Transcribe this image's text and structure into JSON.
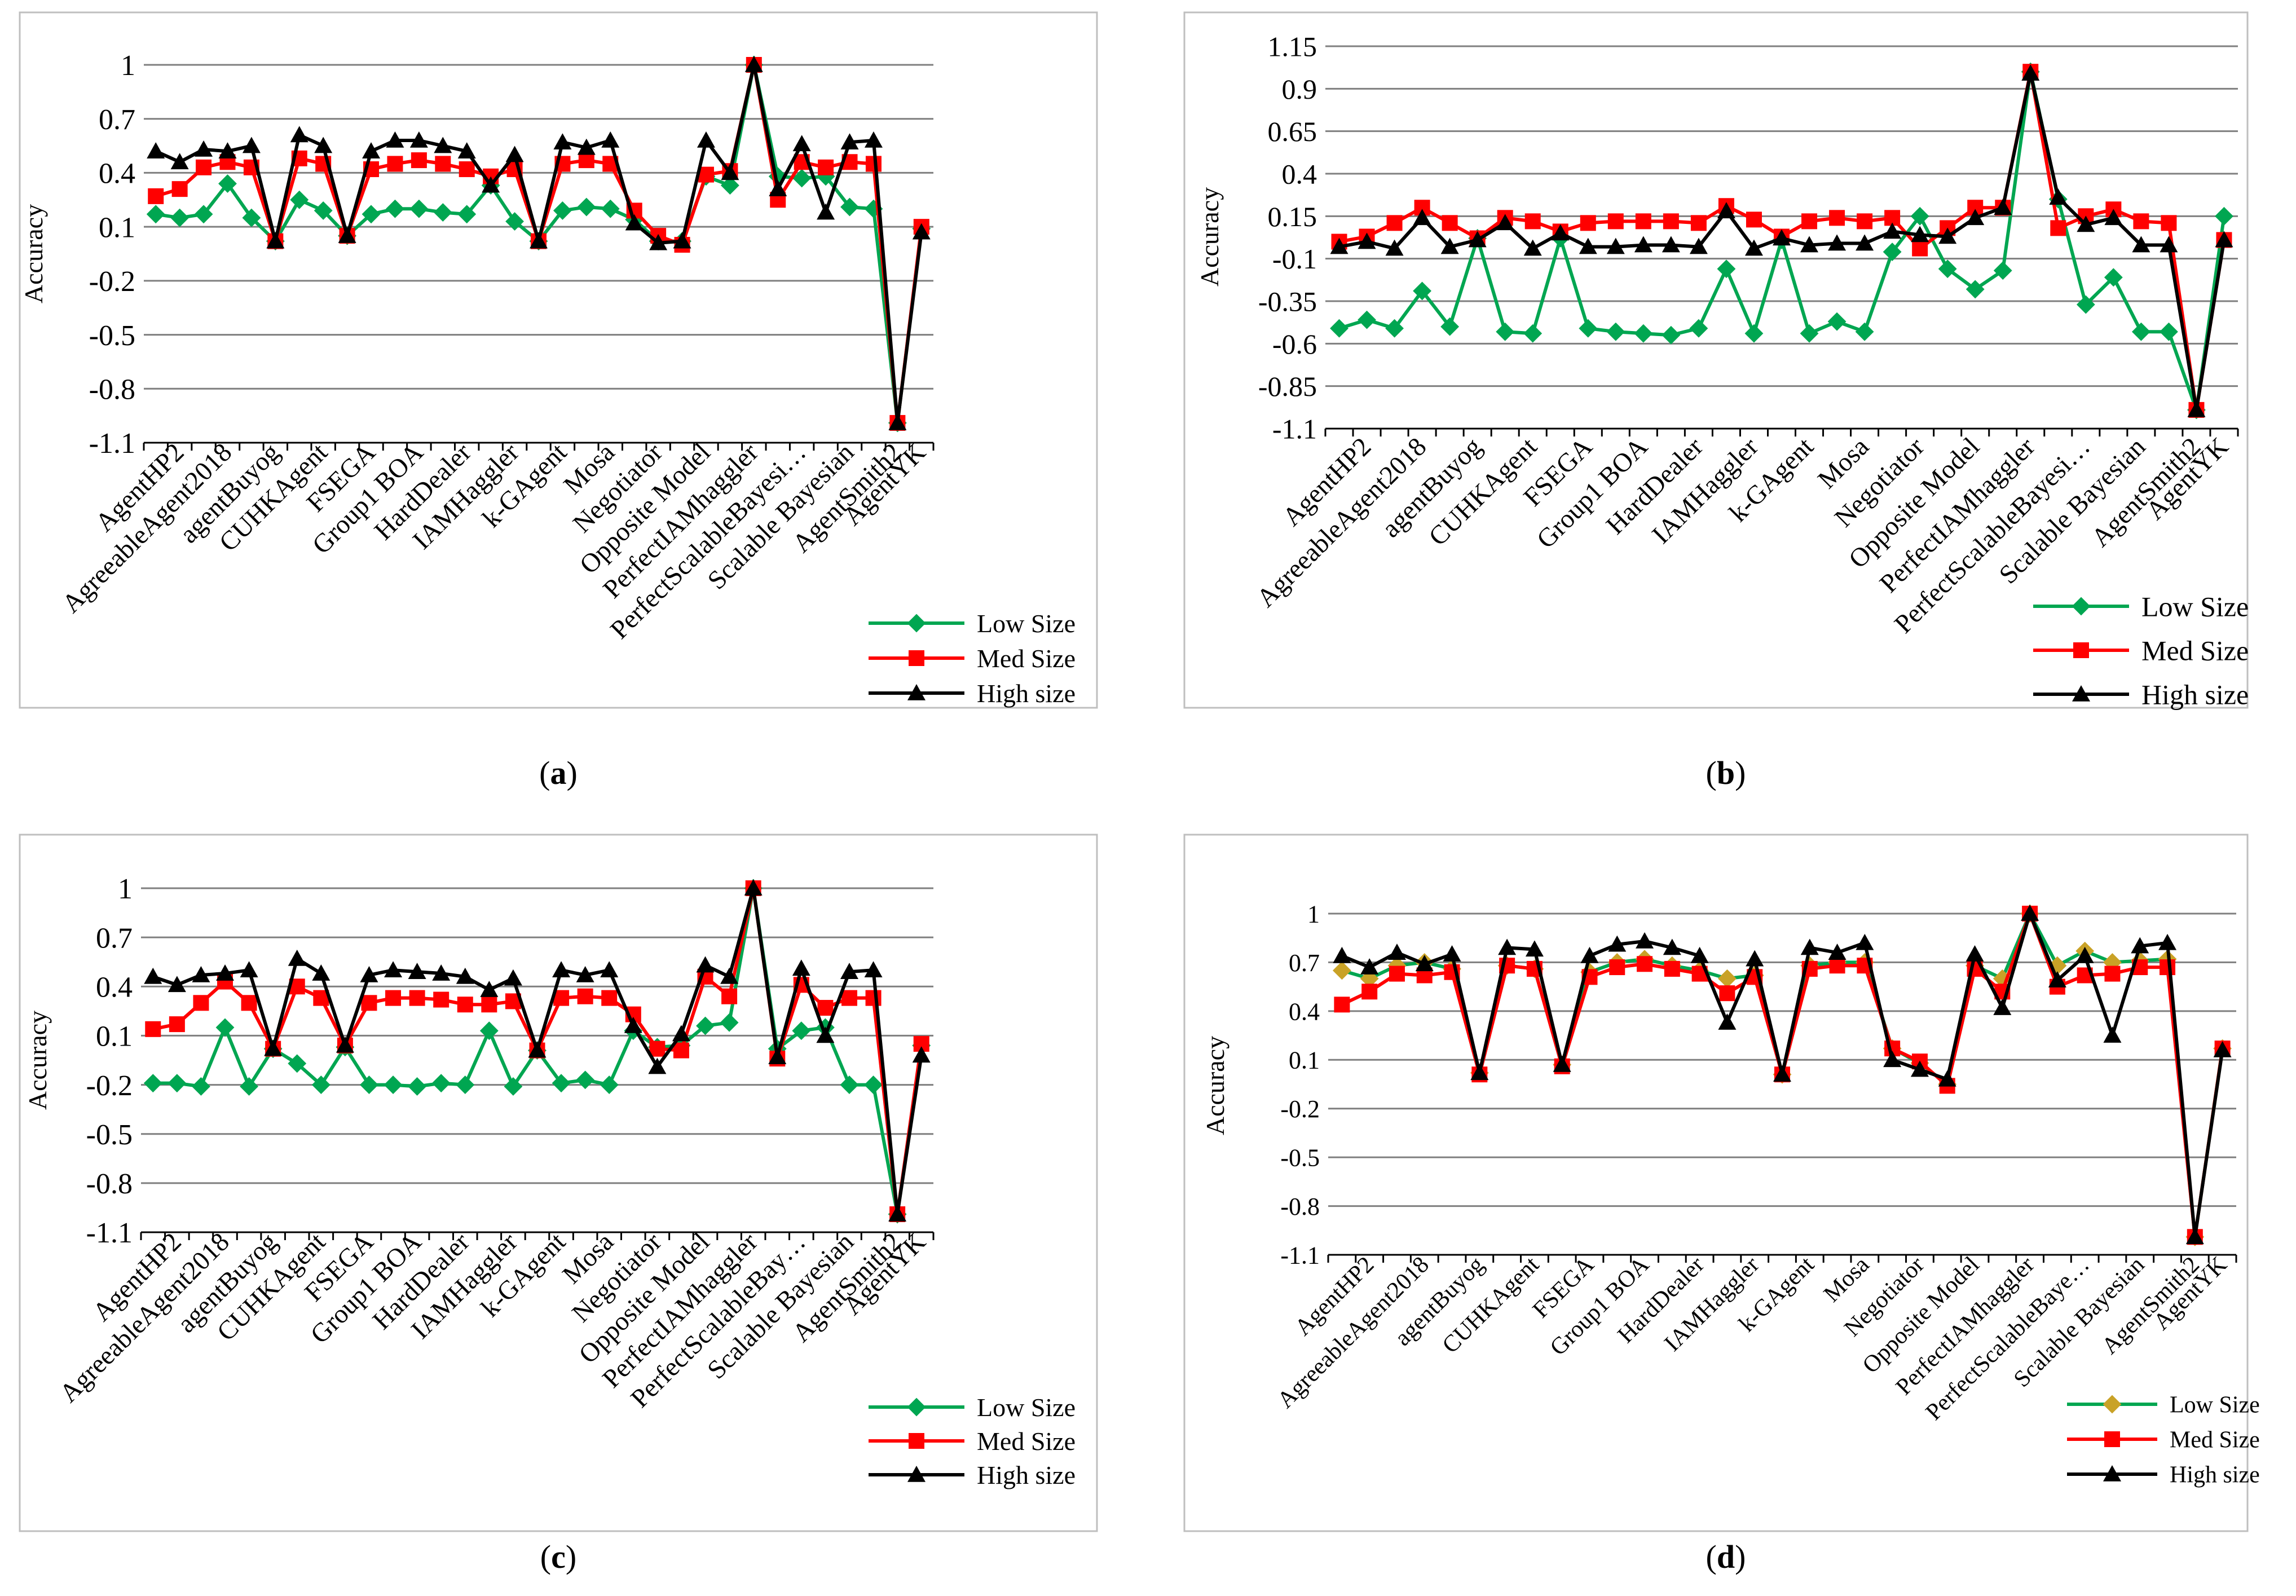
{
  "colors": {
    "low": "#00A651",
    "med": "#FF0000",
    "high": "#000000",
    "grid": "#7F7F7F",
    "border": "#BFBFBF",
    "low_marker_d": "#C9A227"
  },
  "legend": {
    "low": "Low Size",
    "med": "Med Size",
    "high": "High size"
  },
  "chart_data": [
    {
      "panel_label": "(a)",
      "type": "line",
      "ylabel": "Accuracy",
      "ylim": [
        -1.1,
        1.0
      ],
      "yticks": [
        "1",
        "0.7",
        "0.4",
        "0.1",
        "-0.2",
        "-0.5",
        "-0.8",
        "-1.1"
      ],
      "ytick_values": [
        1,
        0.7,
        0.4,
        0.1,
        -0.2,
        -0.5,
        -0.8,
        -1.1
      ],
      "category_labels": [
        "AgentHP2",
        "AgreeableAgent2018",
        "agentBuyog",
        "CUHKAgent",
        "FSEGA",
        "Group1 BOA",
        "HardDealer",
        "IAMHaggler",
        "k-GAgent",
        "Mosa",
        "Negotiator",
        "Opposite Model",
        "PerfectIAMhaggler",
        "PerfectScalableBayesi…",
        "Scalable Bayesian",
        "AgentSmith2",
        "AgentYK"
      ],
      "series": [
        {
          "name": "Low Size",
          "values": [
            0.17,
            0.15,
            0.17,
            0.34,
            0.15,
            0.02,
            0.25,
            0.19,
            0.05,
            0.17,
            0.2,
            0.2,
            0.18,
            0.17,
            0.33,
            0.13,
            0.02,
            0.19,
            0.21,
            0.2,
            0.14,
            0.02,
            0.02,
            0.38,
            0.33,
            1.0,
            0.38,
            0.37,
            0.38,
            0.21,
            0.2,
            -0.99,
            0.09
          ]
        },
        {
          "name": "Med Size",
          "values": [
            0.27,
            0.31,
            0.43,
            0.46,
            0.43,
            0.02,
            0.48,
            0.45,
            0.05,
            0.42,
            0.45,
            0.47,
            0.45,
            0.42,
            0.38,
            0.42,
            0.02,
            0.45,
            0.47,
            0.45,
            0.19,
            0.05,
            0.0,
            0.39,
            0.41,
            1.0,
            0.25,
            0.46,
            0.43,
            0.46,
            0.45,
            -0.99,
            0.1
          ]
        },
        {
          "name": "High size",
          "values": [
            0.52,
            0.46,
            0.53,
            0.52,
            0.55,
            0.02,
            0.61,
            0.55,
            0.05,
            0.52,
            0.58,
            0.58,
            0.55,
            0.52,
            0.33,
            0.5,
            0.02,
            0.57,
            0.54,
            0.58,
            0.12,
            0.01,
            0.02,
            0.58,
            0.4,
            1.0,
            0.31,
            0.56,
            0.18,
            0.57,
            0.58,
            -0.99,
            0.07
          ]
        }
      ]
    },
    {
      "panel_label": "(b)",
      "type": "line",
      "ylabel": "Accuracy",
      "ylim": [
        -1.1,
        1.15
      ],
      "yticks": [
        "1.15",
        "0.9",
        "0.65",
        "0.4",
        "0.15",
        "-0.1",
        "-0.35",
        "-0.6",
        "-0.85",
        "-1.1"
      ],
      "ytick_values": [
        1.15,
        0.9,
        0.65,
        0.4,
        0.15,
        -0.1,
        -0.35,
        -0.6,
        -0.85,
        -1.1
      ],
      "category_labels": [
        "AgentHP2",
        "AgreeableAgent2018",
        "agentBuyog",
        "CUHKAgent",
        "FSEGA",
        "Group1 BOA",
        "HardDealer",
        "IAMHaggler",
        "k-GAgent",
        "Mosa",
        "Negotiator",
        "Opposite Model",
        "PerfectIAMhaggler",
        "PerfectScalableBayesi…",
        "Scalable Bayesian",
        "AgentSmith2",
        "AgentYK"
      ],
      "series": [
        {
          "name": "Low Size",
          "values": [
            -0.51,
            -0.46,
            -0.51,
            -0.29,
            -0.5,
            0.02,
            -0.53,
            -0.54,
            0.02,
            -0.51,
            -0.53,
            -0.54,
            -0.55,
            -0.51,
            -0.16,
            -0.54,
            0.01,
            -0.54,
            -0.47,
            -0.53,
            -0.06,
            0.15,
            -0.16,
            -0.28,
            -0.17,
            1.0,
            0.25,
            -0.37,
            -0.21,
            -0.53,
            -0.53,
            -0.99,
            0.15
          ]
        },
        {
          "name": "Med Size",
          "values": [
            0.0,
            0.03,
            0.11,
            0.2,
            0.11,
            0.02,
            0.14,
            0.12,
            0.06,
            0.11,
            0.12,
            0.12,
            0.12,
            0.11,
            0.21,
            0.13,
            0.03,
            0.12,
            0.14,
            0.12,
            0.14,
            -0.04,
            0.08,
            0.2,
            0.2,
            1.0,
            0.08,
            0.15,
            0.19,
            0.12,
            0.11,
            -0.99,
            0.01
          ]
        },
        {
          "name": "High size",
          "values": [
            -0.03,
            0.0,
            -0.04,
            0.14,
            -0.03,
            0.01,
            0.11,
            -0.04,
            0.05,
            -0.03,
            -0.03,
            -0.02,
            -0.02,
            -0.03,
            0.18,
            -0.04,
            0.02,
            -0.02,
            -0.01,
            -0.01,
            0.06,
            0.04,
            0.03,
            0.14,
            0.2,
            0.99,
            0.26,
            0.1,
            0.14,
            -0.02,
            -0.02,
            -0.99,
            0.01
          ]
        }
      ]
    },
    {
      "panel_label": "(c)",
      "type": "line",
      "ylabel": "Accuracy",
      "ylim": [
        -1.1,
        1.0
      ],
      "yticks": [
        "1",
        "0.7",
        "0.4",
        "0.1",
        "-0.2",
        "-0.5",
        "-0.8",
        "-1.1"
      ],
      "ytick_values": [
        1,
        0.7,
        0.4,
        0.1,
        -0.2,
        -0.5,
        -0.8,
        -1.1
      ],
      "category_labels": [
        "AgentHP2",
        "AgreeableAgent2018",
        "agentBuyog",
        "CUHKAgent",
        "FSEGA",
        "Group1 BOA",
        "HardDealer",
        "IAMHaggler",
        "k-GAgent",
        "Mosa",
        "Negotiator",
        "Opposite Model",
        "PerfectIAMhaggler",
        "PerfectScalableBay…",
        "Scalable Bayesian",
        "AgentSmith2",
        "AgentYK"
      ],
      "series": [
        {
          "name": "Low Size",
          "values": [
            -0.19,
            -0.19,
            -0.21,
            0.15,
            -0.21,
            0.02,
            -0.07,
            -0.2,
            0.03,
            -0.2,
            -0.2,
            -0.21,
            -0.19,
            -0.2,
            0.13,
            -0.21,
            0.01,
            -0.19,
            -0.17,
            -0.2,
            0.13,
            0.03,
            0.04,
            0.16,
            0.18,
            1.0,
            0.02,
            0.13,
            0.15,
            -0.2,
            -0.2,
            -0.99,
            0.04
          ]
        },
        {
          "name": "Med Size",
          "values": [
            0.14,
            0.17,
            0.3,
            0.43,
            0.3,
            0.02,
            0.4,
            0.33,
            0.04,
            0.3,
            0.33,
            0.33,
            0.32,
            0.29,
            0.29,
            0.31,
            0.01,
            0.33,
            0.34,
            0.33,
            0.23,
            0.02,
            0.01,
            0.46,
            0.34,
            1.0,
            -0.04,
            0.41,
            0.27,
            0.33,
            0.33,
            -0.99,
            0.05
          ]
        },
        {
          "name": "High size",
          "values": [
            0.46,
            0.41,
            0.47,
            0.48,
            0.5,
            0.02,
            0.57,
            0.48,
            0.04,
            0.47,
            0.5,
            0.49,
            0.48,
            0.46,
            0.38,
            0.45,
            0.01,
            0.5,
            0.47,
            0.5,
            0.16,
            -0.09,
            0.11,
            0.53,
            0.46,
            1.0,
            -0.03,
            0.51,
            0.1,
            0.49,
            0.5,
            -0.99,
            -0.02
          ]
        }
      ]
    },
    {
      "panel_label": "(d)",
      "type": "line",
      "ylabel": "Accuracy",
      "ylim": [
        -1.1,
        1.0
      ],
      "yticks": [
        "1",
        "0.7",
        "0.4",
        "0.1",
        "-0.2",
        "-0.5",
        "-0.8",
        "-1.1"
      ],
      "ytick_values": [
        1,
        0.7,
        0.4,
        0.1,
        -0.2,
        -0.5,
        -0.8,
        -1.1
      ],
      "category_labels": [
        "AgentHP2",
        "AgreeableAgent2018",
        "agentBuyog",
        "CUHKAgent",
        "FSEGA",
        "Group1 BOA",
        "HardDealer",
        "IAMHaggler",
        "k-GAgent",
        "Mosa",
        "Negotiator",
        "Opposite Model",
        "PerfectIAMhaggler",
        "PerfectScalableBaye…",
        "Scalable Bayesian",
        "AgentSmith2",
        "AgentYK"
      ],
      "series": [
        {
          "name": "Low Size",
          "values": [
            0.65,
            0.6,
            0.68,
            0.7,
            0.66,
            0.02,
            0.68,
            0.66,
            0.07,
            0.64,
            0.7,
            0.72,
            0.68,
            0.65,
            0.6,
            0.62,
            0.01,
            0.68,
            0.7,
            0.7,
            0.17,
            0.08,
            -0.05,
            0.68,
            0.6,
            1.0,
            0.68,
            0.77,
            0.7,
            0.71,
            0.72,
            -0.99,
            0.17
          ]
        },
        {
          "name": "Med Size",
          "values": [
            0.44,
            0.52,
            0.63,
            0.62,
            0.64,
            0.01,
            0.68,
            0.66,
            0.06,
            0.61,
            0.67,
            0.69,
            0.66,
            0.63,
            0.51,
            0.61,
            0.01,
            0.66,
            0.68,
            0.68,
            0.17,
            0.09,
            -0.06,
            0.66,
            0.52,
            1.0,
            0.55,
            0.62,
            0.63,
            0.67,
            0.67,
            -0.99,
            0.17
          ]
        },
        {
          "name": "High size",
          "values": [
            0.74,
            0.67,
            0.76,
            0.69,
            0.75,
            0.02,
            0.79,
            0.78,
            0.07,
            0.74,
            0.81,
            0.83,
            0.79,
            0.74,
            0.33,
            0.72,
            0.01,
            0.79,
            0.76,
            0.82,
            0.1,
            0.04,
            -0.02,
            0.75,
            0.42,
            1.0,
            0.59,
            0.74,
            0.25,
            0.8,
            0.82,
            -0.99,
            0.16
          ]
        }
      ]
    }
  ]
}
